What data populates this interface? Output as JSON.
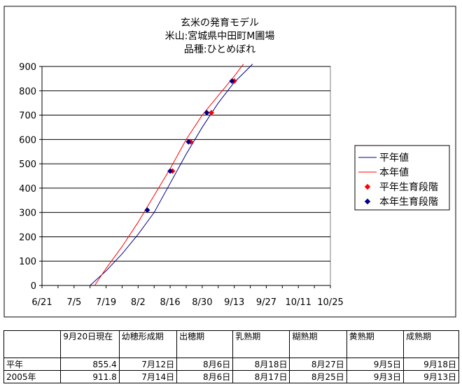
{
  "chart_data": {
    "type": "line",
    "title_lines": [
      "玄米の発育モデル",
      "米山:宮城県中田町M圃場",
      "品種:ひとめぼれ"
    ],
    "x_tick_labels": [
      "6/21",
      "7/5",
      "7/19",
      "8/2",
      "8/16",
      "8/30",
      "9/13",
      "9/27",
      "10/11",
      "10/25"
    ],
    "y_ticks": [
      0,
      100,
      200,
      300,
      400,
      500,
      600,
      700,
      800,
      900
    ],
    "xlim": [
      "2005-06-21",
      "2005-10-25"
    ],
    "ylim": [
      0,
      900
    ],
    "grid": "horizontal",
    "legend_position": "right",
    "series": [
      {
        "name": "平年値",
        "kind": "line",
        "color": "#00008B",
        "points": [
          [
            "2005-07-12",
            0
          ],
          [
            "2005-07-19",
            60
          ],
          [
            "2005-07-26",
            130
          ],
          [
            "2005-08-02",
            210
          ],
          [
            "2005-08-09",
            300
          ],
          [
            "2005-08-16",
            420
          ],
          [
            "2005-08-23",
            540
          ],
          [
            "2005-08-30",
            650
          ],
          [
            "2005-09-06",
            750
          ],
          [
            "2005-09-13",
            835
          ],
          [
            "2005-09-20",
            900
          ],
          [
            "2005-09-21",
            910
          ]
        ]
      },
      {
        "name": "本年値",
        "kind": "line",
        "color": "#FF0000",
        "points": [
          [
            "2005-07-14",
            0
          ],
          [
            "2005-07-19",
            70
          ],
          [
            "2005-07-26",
            160
          ],
          [
            "2005-08-02",
            260
          ],
          [
            "2005-08-09",
            370
          ],
          [
            "2005-08-16",
            480
          ],
          [
            "2005-08-23",
            600
          ],
          [
            "2005-08-30",
            700
          ],
          [
            "2005-09-06",
            780
          ],
          [
            "2005-09-13",
            860
          ],
          [
            "2005-09-17",
            910
          ]
        ]
      },
      {
        "name": "平年生育段階",
        "kind": "markers",
        "color": "#FF0000",
        "points": [
          [
            "2005-08-17",
            470
          ],
          [
            "2005-08-25",
            590
          ],
          [
            "2005-09-03",
            710
          ],
          [
            "2005-09-13",
            840
          ]
        ]
      },
      {
        "name": "本年生育段階",
        "kind": "markers",
        "color": "#00008B",
        "points": [
          [
            "2005-08-06",
            310
          ],
          [
            "2005-08-16",
            470
          ],
          [
            "2005-08-24",
            590
          ],
          [
            "2005-09-01",
            710
          ],
          [
            "2005-09-12",
            840
          ]
        ]
      }
    ]
  },
  "table": {
    "header": [
      "9月20日現在",
      "幼穂形成期",
      "出穂期",
      "乳熟期",
      "糊熟期",
      "黄熟期",
      "成熟期"
    ],
    "rows": [
      {
        "label": "平年",
        "cells": [
          "855.4",
          "7月12日",
          "8月6日",
          "8月18日",
          "8月27日",
          "9月5日",
          "9月18日"
        ]
      },
      {
        "label": "2005年",
        "cells": [
          "911.8",
          "7月14日",
          "8月6日",
          "8月17日",
          "8月25日",
          "9月3日",
          "9月13日"
        ]
      }
    ]
  }
}
